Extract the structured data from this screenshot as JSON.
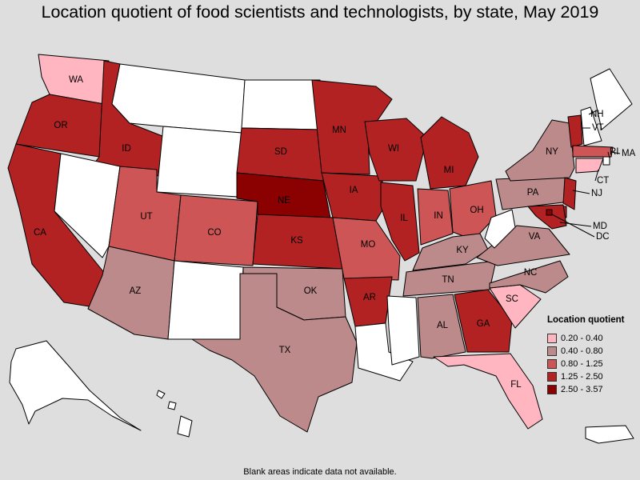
{
  "title": "Location quotient of food scientists and technologists, by state, May 2019",
  "footnote": "Blank areas indicate data not available.",
  "legend": {
    "title": "Location quotient",
    "classes": [
      {
        "label": "0.20 - 0.40",
        "color": "#ffb6c1"
      },
      {
        "label": "0.40 - 0.80",
        "color": "#bc8a8a"
      },
      {
        "label": "0.80 - 1.25",
        "color": "#cd5555"
      },
      {
        "label": "1.25 - 2.50",
        "color": "#b22222"
      },
      {
        "label": "2.50 - 3.57",
        "color": "#8b0000"
      }
    ]
  },
  "no_data_color": "#ffffff",
  "states": [
    {
      "abbr": "WA",
      "class": 0,
      "label": "WA"
    },
    {
      "abbr": "OR",
      "class": 3,
      "label": "OR"
    },
    {
      "abbr": "CA",
      "class": 3,
      "label": "CA"
    },
    {
      "abbr": "ID",
      "class": 3,
      "label": "ID"
    },
    {
      "abbr": "NV",
      "class": null,
      "label": ""
    },
    {
      "abbr": "MT",
      "class": null,
      "label": ""
    },
    {
      "abbr": "WY",
      "class": null,
      "label": ""
    },
    {
      "abbr": "UT",
      "class": 2,
      "label": "UT"
    },
    {
      "abbr": "AZ",
      "class": 1,
      "label": "AZ"
    },
    {
      "abbr": "CO",
      "class": 2,
      "label": "CO"
    },
    {
      "abbr": "NM",
      "class": null,
      "label": ""
    },
    {
      "abbr": "ND",
      "class": null,
      "label": ""
    },
    {
      "abbr": "SD",
      "class": 3,
      "label": "SD"
    },
    {
      "abbr": "NE",
      "class": 4,
      "label": "NE"
    },
    {
      "abbr": "KS",
      "class": 3,
      "label": "KS"
    },
    {
      "abbr": "OK",
      "class": 1,
      "label": "OK"
    },
    {
      "abbr": "TX",
      "class": 1,
      "label": "TX"
    },
    {
      "abbr": "MN",
      "class": 3,
      "label": "MN"
    },
    {
      "abbr": "IA",
      "class": 3,
      "label": "IA"
    },
    {
      "abbr": "MO",
      "class": 2,
      "label": "MO"
    },
    {
      "abbr": "AR",
      "class": 3,
      "label": "AR"
    },
    {
      "abbr": "LA",
      "class": null,
      "label": ""
    },
    {
      "abbr": "WI",
      "class": 3,
      "label": "WI"
    },
    {
      "abbr": "IL",
      "class": 3,
      "label": "IL"
    },
    {
      "abbr": "MI",
      "class": 3,
      "label": "MI"
    },
    {
      "abbr": "IN",
      "class": 2,
      "label": "IN"
    },
    {
      "abbr": "OH",
      "class": 2,
      "label": "OH"
    },
    {
      "abbr": "KY",
      "class": 1,
      "label": "KY"
    },
    {
      "abbr": "TN",
      "class": 1,
      "label": "TN"
    },
    {
      "abbr": "MS",
      "class": null,
      "label": ""
    },
    {
      "abbr": "AL",
      "class": 1,
      "label": "AL"
    },
    {
      "abbr": "GA",
      "class": 3,
      "label": "GA"
    },
    {
      "abbr": "FL",
      "class": 0,
      "label": "FL"
    },
    {
      "abbr": "SC",
      "class": 0,
      "label": "SC"
    },
    {
      "abbr": "NC",
      "class": 1,
      "label": "NC"
    },
    {
      "abbr": "VA",
      "class": 1,
      "label": "VA"
    },
    {
      "abbr": "WV",
      "class": null,
      "label": ""
    },
    {
      "abbr": "PA",
      "class": 1,
      "label": "PA"
    },
    {
      "abbr": "NY",
      "class": 1,
      "label": "NY"
    },
    {
      "abbr": "VT",
      "class": 3,
      "label": "VT"
    },
    {
      "abbr": "NH",
      "class": null,
      "label": "NH"
    },
    {
      "abbr": "ME",
      "class": null,
      "label": ""
    },
    {
      "abbr": "MA",
      "class": 2,
      "label": "MA"
    },
    {
      "abbr": "RI",
      "class": null,
      "label": "RI"
    },
    {
      "abbr": "CT",
      "class": 0,
      "label": "CT"
    },
    {
      "abbr": "NJ",
      "class": 3,
      "label": "NJ"
    },
    {
      "abbr": "DE",
      "class": 3,
      "label": ""
    },
    {
      "abbr": "MD",
      "class": 3,
      "label": "MD"
    },
    {
      "abbr": "DC",
      "class": 4,
      "label": "DC"
    },
    {
      "abbr": "AK",
      "class": null,
      "label": ""
    },
    {
      "abbr": "HI",
      "class": null,
      "label": ""
    },
    {
      "abbr": "PR",
      "class": null,
      "label": ""
    }
  ]
}
